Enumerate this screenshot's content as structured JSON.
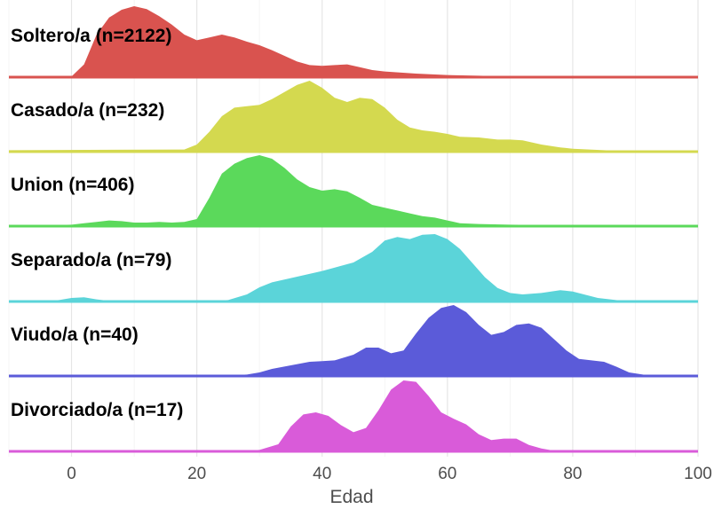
{
  "chart_data": {
    "type": "ridgeline",
    "title": "",
    "xlabel": "Edad",
    "ylabel": "",
    "xlim": [
      -10,
      100
    ],
    "xticks": [
      0,
      20,
      40,
      60,
      80,
      100
    ],
    "grid": "vertical",
    "legend": "none",
    "series": [
      {
        "name": "Soltero/a (n=2122)",
        "color": "#d9534f",
        "x": [
          -10,
          0,
          2,
          4,
          6,
          8,
          10,
          12,
          14,
          16,
          18,
          20,
          22,
          24,
          26,
          28,
          30,
          32,
          34,
          36,
          38,
          40,
          42,
          44,
          46,
          48,
          50,
          55,
          60,
          65,
          70,
          80,
          90,
          100
        ],
        "density": [
          0,
          0.01,
          0.18,
          0.6,
          0.84,
          0.95,
          1.0,
          0.96,
          0.86,
          0.74,
          0.6,
          0.52,
          0.56,
          0.6,
          0.56,
          0.5,
          0.45,
          0.38,
          0.3,
          0.22,
          0.17,
          0.16,
          0.17,
          0.18,
          0.14,
          0.1,
          0.08,
          0.05,
          0.03,
          0.02,
          0.01,
          0.005,
          0,
          0
        ]
      },
      {
        "name": "Casado/a (n=232)",
        "color": "#d4d94f",
        "x": [
          -10,
          18,
          20,
          22,
          24,
          26,
          28,
          30,
          32,
          34,
          36,
          38,
          40,
          42,
          44,
          46,
          48,
          50,
          52,
          54,
          56,
          58,
          60,
          62,
          65,
          68,
          70,
          72,
          75,
          78,
          80,
          85,
          90,
          100
        ],
        "density": [
          0.02,
          0.03,
          0.1,
          0.28,
          0.5,
          0.62,
          0.64,
          0.66,
          0.74,
          0.84,
          0.94,
          1.0,
          0.9,
          0.76,
          0.7,
          0.76,
          0.74,
          0.62,
          0.45,
          0.34,
          0.3,
          0.28,
          0.25,
          0.21,
          0.2,
          0.17,
          0.17,
          0.16,
          0.1,
          0.06,
          0.04,
          0.02,
          0,
          0
        ]
      },
      {
        "name": "Union (n=406)",
        "color": "#5bd95b",
        "x": [
          -10,
          0,
          2,
          4,
          6,
          8,
          10,
          12,
          14,
          16,
          18,
          20,
          22,
          24,
          26,
          28,
          30,
          32,
          34,
          36,
          38,
          40,
          42,
          44,
          46,
          48,
          50,
          52,
          54,
          56,
          58,
          60,
          62,
          65,
          70,
          80,
          100
        ],
        "density": [
          0,
          0.02,
          0.04,
          0.06,
          0.08,
          0.07,
          0.05,
          0.05,
          0.06,
          0.05,
          0.06,
          0.1,
          0.4,
          0.74,
          0.88,
          0.96,
          1.0,
          0.95,
          0.82,
          0.66,
          0.55,
          0.5,
          0.52,
          0.49,
          0.4,
          0.3,
          0.26,
          0.22,
          0.18,
          0.14,
          0.12,
          0.08,
          0.04,
          0.03,
          0.02,
          0.01,
          0
        ]
      },
      {
        "name": "Separado/a (n=79)",
        "color": "#5bd4d9",
        "x": [
          -10,
          -5,
          -2,
          0,
          2,
          4,
          6,
          10,
          20,
          25,
          28,
          30,
          32,
          35,
          40,
          45,
          48,
          50,
          52,
          54,
          56,
          58,
          60,
          62,
          64,
          66,
          68,
          70,
          72,
          75,
          78,
          80,
          84,
          88,
          100
        ],
        "density": [
          0,
          0,
          0.02,
          0.05,
          0.06,
          0.03,
          0.01,
          0,
          0,
          0.02,
          0.1,
          0.2,
          0.27,
          0.33,
          0.43,
          0.55,
          0.7,
          0.86,
          0.91,
          0.88,
          0.94,
          0.95,
          0.88,
          0.74,
          0.54,
          0.34,
          0.19,
          0.12,
          0.1,
          0.12,
          0.16,
          0.14,
          0.05,
          0.01,
          0
        ]
      },
      {
        "name": "Viudo/a (n=40)",
        "color": "#5b5bd9",
        "x": [
          -10,
          20,
          25,
          28,
          30,
          32,
          35,
          38,
          40,
          42,
          45,
          47,
          49,
          51,
          53,
          55,
          57,
          59,
          61,
          63,
          65,
          67,
          69,
          71,
          73,
          75,
          77,
          79,
          81,
          83,
          85,
          87,
          89,
          92,
          95,
          100
        ],
        "density": [
          0,
          0,
          0.01,
          0.02,
          0.05,
          0.1,
          0.15,
          0.2,
          0.21,
          0.22,
          0.3,
          0.4,
          0.4,
          0.32,
          0.36,
          0.6,
          0.82,
          0.96,
          1.0,
          0.9,
          0.72,
          0.58,
          0.62,
          0.72,
          0.74,
          0.68,
          0.52,
          0.36,
          0.24,
          0.22,
          0.2,
          0.13,
          0.05,
          0.01,
          0,
          0
        ]
      },
      {
        "name": "Divorciado/a (n=17)",
        "color": "#d95bd9",
        "x": [
          -10,
          25,
          30,
          33,
          35,
          37,
          39,
          41,
          43,
          45,
          47,
          49,
          51,
          53,
          55,
          57,
          59,
          61,
          63,
          65,
          67,
          69,
          71,
          73,
          75,
          77,
          79,
          82,
          100
        ],
        "density": [
          0,
          0,
          0.02,
          0.1,
          0.35,
          0.52,
          0.55,
          0.5,
          0.37,
          0.27,
          0.33,
          0.58,
          0.87,
          1.0,
          0.98,
          0.78,
          0.55,
          0.46,
          0.38,
          0.24,
          0.16,
          0.18,
          0.18,
          0.09,
          0.04,
          0.01,
          0,
          0,
          0
        ]
      }
    ]
  }
}
